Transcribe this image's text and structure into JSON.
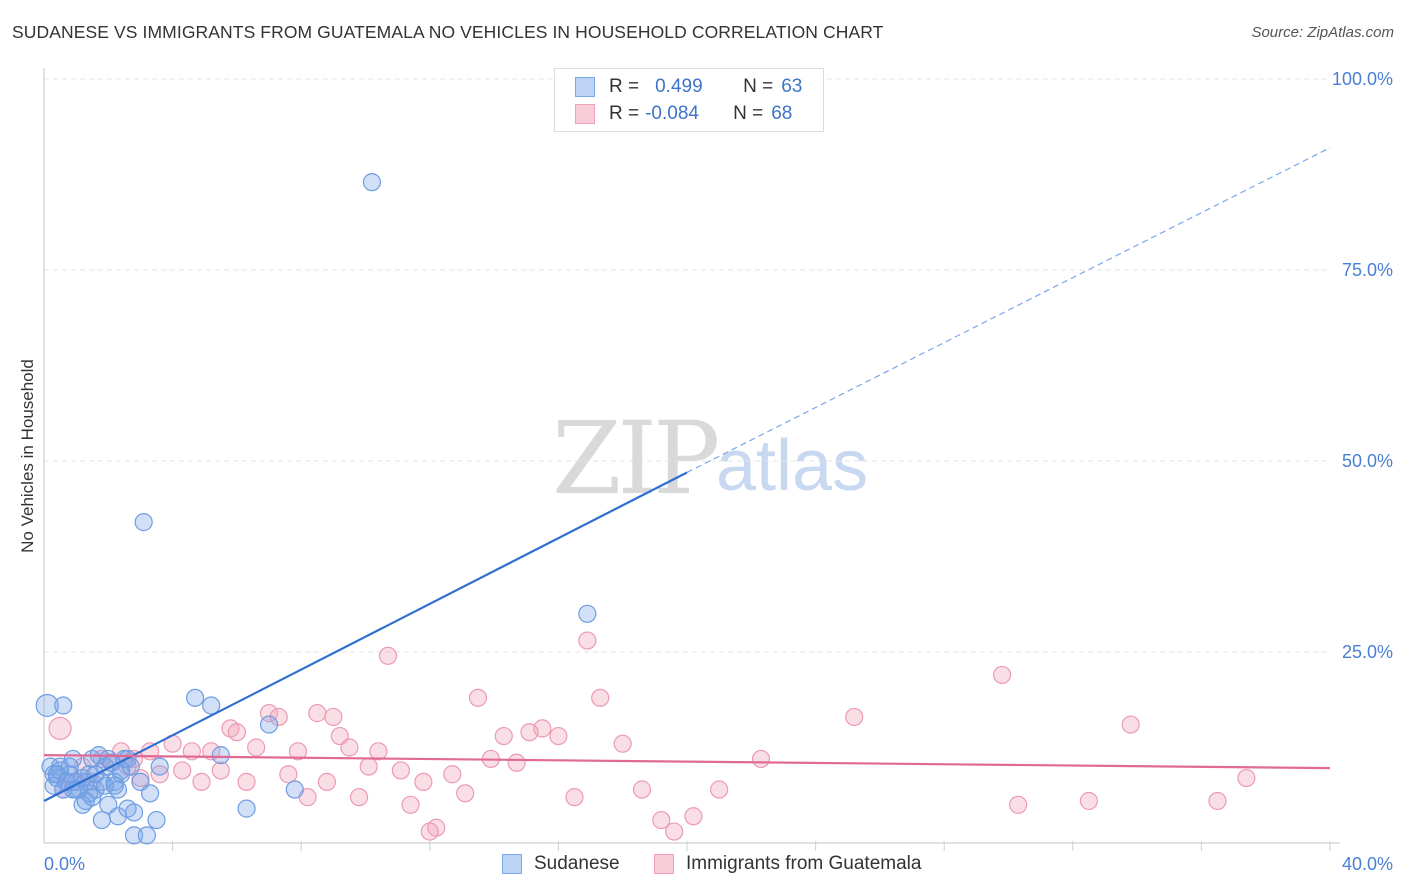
{
  "header": {
    "title": "SUDANESE VS IMMIGRANTS FROM GUATEMALA NO VEHICLES IN HOUSEHOLD CORRELATION CHART",
    "source": "Source: ZipAtlas.com"
  },
  "watermark": {
    "zip": "ZIP",
    "atlas": "atlas"
  },
  "legend": {
    "rows": [
      {
        "r_label": "R =",
        "r_value": "0.499",
        "n_label": "N =",
        "n_value": "63",
        "color": "#7aa7e8"
      },
      {
        "r_label": "R =",
        "r_value": "-0.084",
        "n_label": "N =",
        "n_value": "68",
        "color": "#f0a0b8"
      }
    ]
  },
  "chart_data": {
    "type": "scatter",
    "title": "SUDANESE VS IMMIGRANTS FROM GUATEMALA NO VEHICLES IN HOUSEHOLD CORRELATION CHART",
    "xlabel": "",
    "ylabel": "No Vehicles in Household",
    "xlim": [
      0,
      40
    ],
    "ylim": [
      0,
      100
    ],
    "x_tick_labels": [
      "0.0%",
      "40.0%"
    ],
    "y_tick_labels": [
      "100.0%",
      "75.0%",
      "50.0%",
      "25.0%"
    ],
    "y_ticks": [
      100,
      75,
      50,
      25
    ],
    "grid": true,
    "legend_position": "bottom",
    "colors": {
      "sudanese": "#7aa7e8",
      "guatemala": "#f0a0b8",
      "sudanese_line": "#2f6fd0",
      "guatemala_line": "#e06a95"
    },
    "series": [
      {
        "name": "Sudanese",
        "trend": {
          "x": [
            0,
            20
          ],
          "y": [
            5.5,
            48.5
          ],
          "dashed_to": [
            40,
            91
          ]
        },
        "points": [
          [
            0.1,
            18
          ],
          [
            0.6,
            18
          ],
          [
            0.2,
            10
          ],
          [
            0.3,
            9
          ],
          [
            0.4,
            8.5
          ],
          [
            0.5,
            10
          ],
          [
            0.6,
            7
          ],
          [
            0.7,
            8
          ],
          [
            0.8,
            9
          ],
          [
            0.9,
            11
          ],
          [
            1.0,
            8
          ],
          [
            1.1,
            7
          ],
          [
            1.2,
            5
          ],
          [
            1.3,
            8
          ],
          [
            1.4,
            9
          ],
          [
            1.5,
            11
          ],
          [
            1.6,
            7
          ],
          [
            1.7,
            11.5
          ],
          [
            1.8,
            8
          ],
          [
            1.9,
            10
          ],
          [
            2.0,
            11
          ],
          [
            2.1,
            10.5
          ],
          [
            2.2,
            8
          ],
          [
            2.3,
            7
          ],
          [
            2.4,
            9
          ],
          [
            2.5,
            11
          ],
          [
            1.5,
            6
          ],
          [
            1.8,
            3
          ],
          [
            2.0,
            5
          ],
          [
            2.3,
            3.5
          ],
          [
            2.6,
            4.5
          ],
          [
            2.8,
            1
          ],
          [
            3.0,
            8
          ],
          [
            3.2,
            1
          ],
          [
            3.3,
            6.5
          ],
          [
            3.5,
            3
          ],
          [
            3.6,
            10
          ],
          [
            2.8,
            4
          ],
          [
            0.3,
            7.5
          ],
          [
            0.9,
            7
          ],
          [
            1.2,
            8.5
          ],
          [
            1.4,
            6.5
          ],
          [
            1.9,
            7.5
          ],
          [
            2.6,
            11
          ],
          [
            0.5,
            9.5
          ],
          [
            0.8,
            10
          ],
          [
            1.6,
            9
          ],
          [
            2.2,
            7.5
          ],
          [
            2.7,
            10
          ],
          [
            3.1,
            42
          ],
          [
            4.7,
            19
          ],
          [
            5.2,
            18
          ],
          [
            5.5,
            11.5
          ],
          [
            6.3,
            4.5
          ],
          [
            7.0,
            15.5
          ],
          [
            7.8,
            7
          ],
          [
            10.2,
            86.5
          ],
          [
            16.9,
            30
          ],
          [
            1.0,
            7
          ],
          [
            1.3,
            5.5
          ],
          [
            0.4,
            9
          ],
          [
            0.7,
            8
          ],
          [
            2.4,
            9.5
          ]
        ]
      },
      {
        "name": "Immigrants from Guatemala",
        "trend": {
          "x": [
            0,
            40
          ],
          "y": [
            11.5,
            9.8
          ]
        },
        "points": [
          [
            0.5,
            15
          ],
          [
            0.6,
            7
          ],
          [
            0.9,
            8
          ],
          [
            1.2,
            10
          ],
          [
            1.5,
            8
          ],
          [
            1.8,
            11
          ],
          [
            2.1,
            10.5
          ],
          [
            2.4,
            12
          ],
          [
            2.6,
            10
          ],
          [
            2.8,
            11
          ],
          [
            3.0,
            8.5
          ],
          [
            3.3,
            12
          ],
          [
            3.6,
            9
          ],
          [
            4.0,
            13
          ],
          [
            4.3,
            9.5
          ],
          [
            4.6,
            12
          ],
          [
            4.9,
            8
          ],
          [
            5.2,
            12
          ],
          [
            5.5,
            9.5
          ],
          [
            5.8,
            15
          ],
          [
            6.0,
            14.5
          ],
          [
            6.3,
            8
          ],
          [
            6.6,
            12.5
          ],
          [
            7.0,
            17
          ],
          [
            7.3,
            16.5
          ],
          [
            7.6,
            9
          ],
          [
            7.9,
            12
          ],
          [
            8.2,
            6
          ],
          [
            8.5,
            17
          ],
          [
            8.8,
            8
          ],
          [
            9.0,
            16.5
          ],
          [
            9.2,
            14
          ],
          [
            9.5,
            12.5
          ],
          [
            9.8,
            6
          ],
          [
            10.1,
            10
          ],
          [
            10.4,
            12
          ],
          [
            10.7,
            24.5
          ],
          [
            11.1,
            9.5
          ],
          [
            11.4,
            5
          ],
          [
            11.8,
            8
          ],
          [
            12.2,
            2
          ],
          [
            12.7,
            9
          ],
          [
            13.1,
            6.5
          ],
          [
            13.5,
            19
          ],
          [
            13.9,
            11
          ],
          [
            14.3,
            14
          ],
          [
            14.7,
            10.5
          ],
          [
            15.1,
            14.5
          ],
          [
            15.5,
            15
          ],
          [
            16.0,
            14
          ],
          [
            16.5,
            6
          ],
          [
            16.9,
            26.5
          ],
          [
            17.3,
            19
          ],
          [
            18.0,
            13
          ],
          [
            18.6,
            7
          ],
          [
            19.2,
            3
          ],
          [
            19.6,
            1.5
          ],
          [
            20.2,
            3.5
          ],
          [
            21.0,
            7
          ],
          [
            22.3,
            11
          ],
          [
            25.2,
            16.5
          ],
          [
            29.8,
            22
          ],
          [
            30.3,
            5
          ],
          [
            32.5,
            5.5
          ],
          [
            33.8,
            15.5
          ],
          [
            36.5,
            5.5
          ],
          [
            37.4,
            8.5
          ],
          [
            12.0,
            1.5
          ]
        ]
      }
    ]
  },
  "bottom_legend": {
    "items": [
      {
        "label": "Sudanese",
        "color": "#7aa7e8"
      },
      {
        "label": "Immigrants from Guatemala",
        "color": "#f0a0b8"
      }
    ]
  }
}
